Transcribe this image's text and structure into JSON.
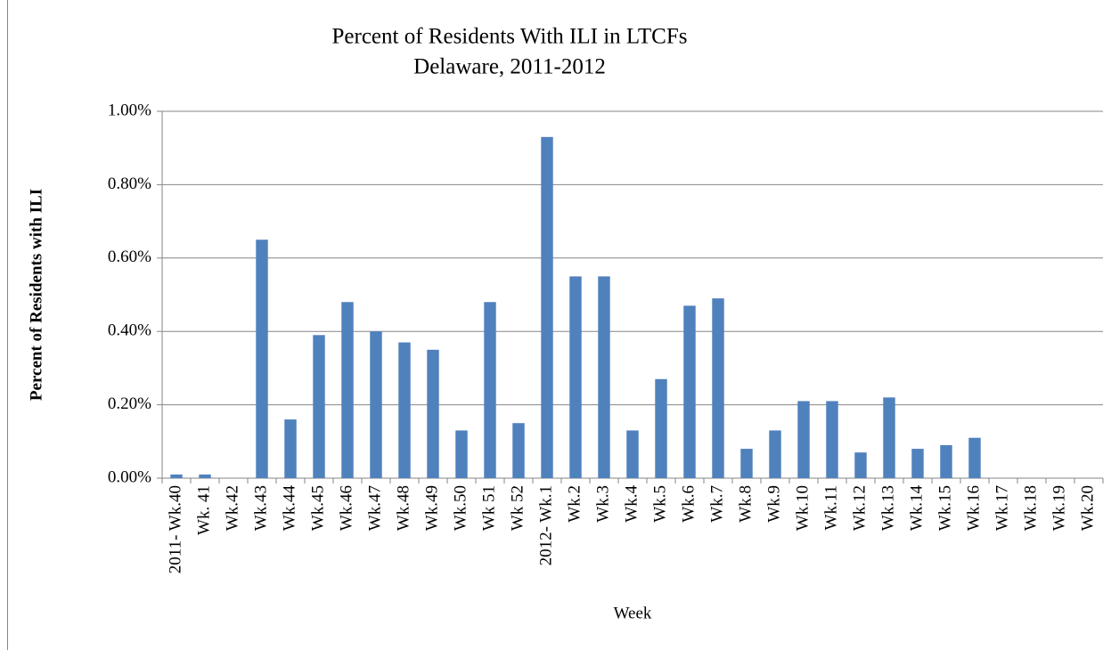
{
  "chart_data": {
    "type": "bar",
    "title": "Percent of Residents With ILI in LTCFs",
    "subtitle": "Delaware, 2011-2012",
    "x_label": "Week",
    "y_label": "Percent of Residents  with ILI",
    "categories": [
      "2011- Wk.40",
      "Wk. 41",
      "Wk.42",
      "Wk.43",
      "Wk.44",
      "Wk.45",
      "Wk.46",
      "Wk.47",
      "Wk.48",
      "Wk.49",
      "Wk.50",
      "Wk 51",
      "Wk 52",
      "2012- Wk.1",
      "Wk.2",
      "Wk.3",
      "Wk.4",
      "Wk.5",
      "Wk.6",
      "Wk.7",
      "Wk.8",
      "Wk.9",
      "Wk.10",
      "Wk.11",
      "Wk.12",
      "Wk.13",
      "Wk.14",
      "Wk.15",
      "Wk.16",
      "Wk.17",
      "Wk.18",
      "Wk.19",
      "Wk.20"
    ],
    "values": [
      0.01,
      0.01,
      0,
      0.65,
      0.16,
      0.39,
      0.48,
      0.4,
      0.37,
      0.35,
      0.13,
      0.48,
      0.15,
      0.93,
      0.55,
      0.55,
      0.13,
      0.27,
      0.47,
      0.49,
      0.08,
      0.13,
      0.21,
      0.21,
      0.07,
      0.22,
      0.08,
      0.09,
      0.11,
      0,
      0,
      0,
      0
    ],
    "color": "#4f81bd",
    "ylim": [
      0,
      1
    ],
    "yticks": [
      {
        "value": 0,
        "label": "0.00%"
      },
      {
        "value": 0.2,
        "label": "0.20%"
      },
      {
        "value": 0.4,
        "label": "0.40%"
      },
      {
        "value": 0.6,
        "label": "0.60%"
      },
      {
        "value": 0.8,
        "label": "0.80%"
      },
      {
        "value": 1,
        "label": "1.00%"
      }
    ],
    "grid": true
  }
}
